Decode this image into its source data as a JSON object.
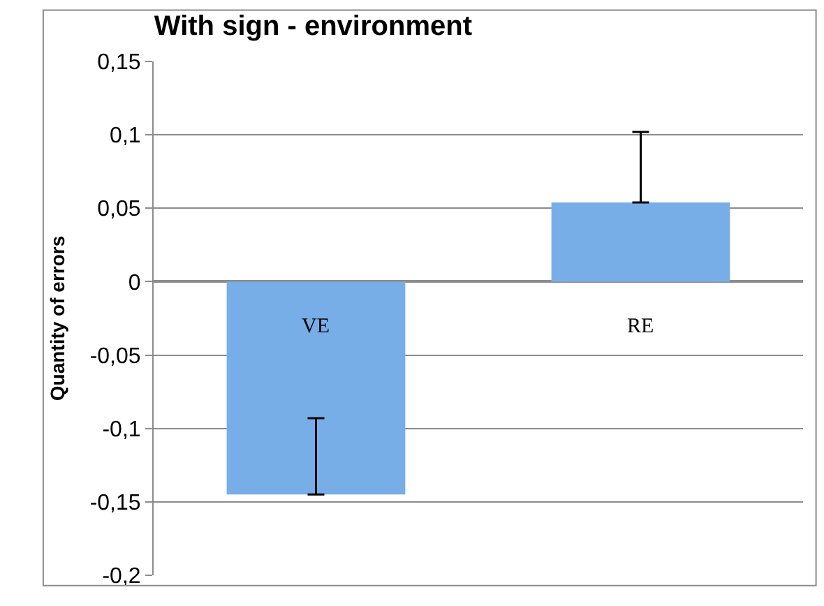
{
  "chart_data": {
    "type": "bar",
    "title": "With sign - environment",
    "ylabel": "Quantity of errors",
    "categories": [
      "VE",
      "RE"
    ],
    "values": [
      -0.145,
      0.054
    ],
    "errors": [
      [
        -0.145,
        -0.093
      ],
      [
        0.054,
        0.102
      ]
    ],
    "color": "#78aee8",
    "ylim": [
      -0.2,
      0.15
    ],
    "yticks": [
      {
        "value": -0.2,
        "label": "-0,2"
      },
      {
        "value": -0.15,
        "label": "-0,15"
      },
      {
        "value": -0.1,
        "label": "-0,1"
      },
      {
        "value": -0.05,
        "label": "-0,05"
      },
      {
        "value": 0,
        "label": "0"
      },
      {
        "value": 0.05,
        "label": "0,05"
      },
      {
        "value": 0.1,
        "label": "0,1"
      },
      {
        "value": 0.15,
        "label": "0,15"
      }
    ],
    "grid": "y",
    "legend": false
  }
}
